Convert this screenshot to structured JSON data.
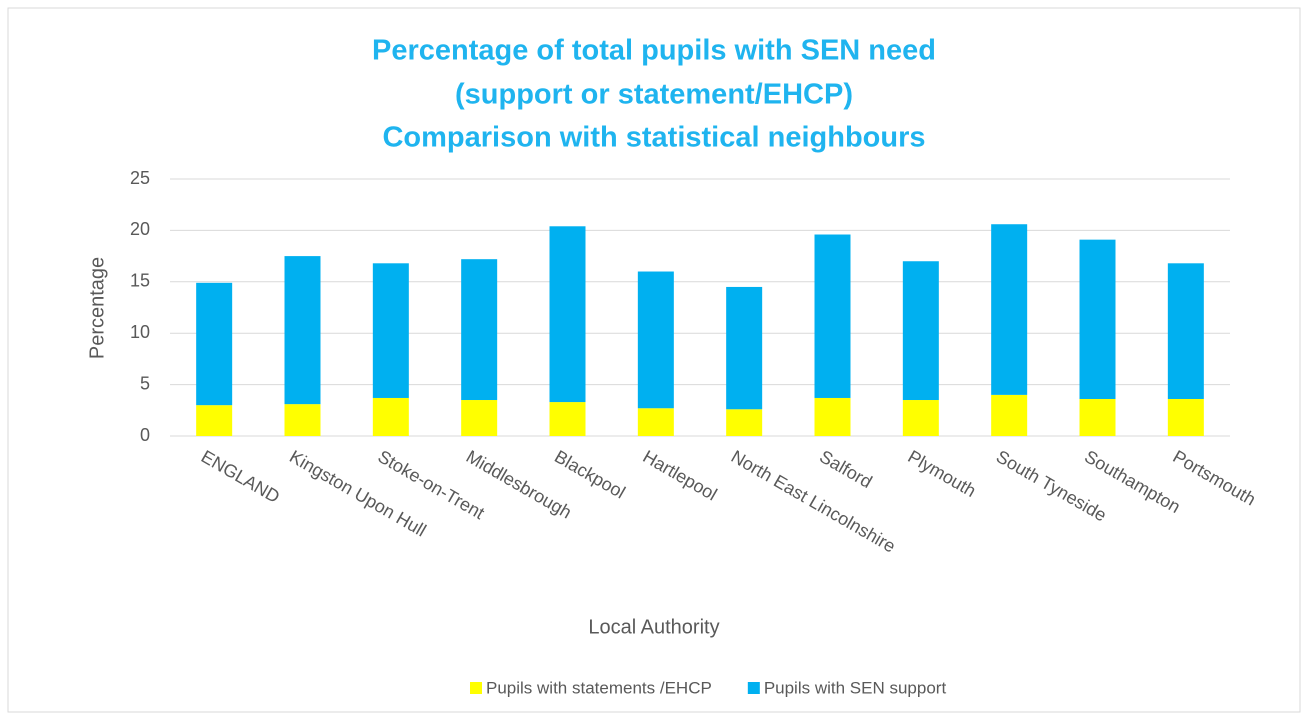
{
  "chart_data": {
    "type": "stacked_bar",
    "title": [
      "Percentage of total pupils with SEN need",
      "(support or statement/EHCP)",
      "Comparison with statistical neighbours"
    ],
    "x_label": "Local Authority",
    "y_label": "Percentage",
    "categories": [
      "ENGLAND",
      "Kingston Upon Hull",
      "Stoke-on-Trent",
      "Middlesbrough",
      "Blackpool",
      "Hartlepool",
      "North East Lincolnshire",
      "Salford",
      "Plymouth",
      "South Tyneside",
      "Southampton",
      "Portsmouth"
    ],
    "series": [
      {
        "name": "Pupils with statements /EHCP",
        "color": "#ffff00",
        "values": [
          3.0,
          3.1,
          3.7,
          3.5,
          3.3,
          2.7,
          2.6,
          3.7,
          3.5,
          4.0,
          3.6,
          3.6
        ]
      },
      {
        "name": "Pupils with SEN support",
        "color": "#00b0f0",
        "values": [
          11.9,
          14.4,
          13.1,
          13.7,
          17.1,
          13.3,
          11.9,
          15.9,
          13.5,
          16.6,
          15.5,
          13.2
        ]
      }
    ],
    "ylim": [
      0,
      25
    ],
    "yticks": [
      0,
      5,
      10,
      15,
      20,
      25
    ],
    "grid": true,
    "legend": "bottom"
  }
}
